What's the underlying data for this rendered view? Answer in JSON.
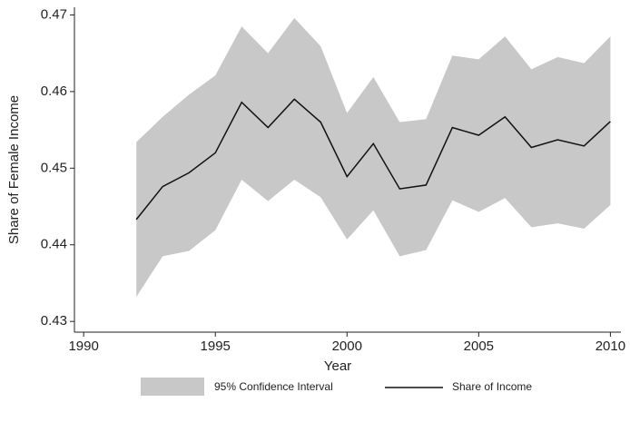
{
  "chart_data": {
    "type": "line-band",
    "x_label": "Year",
    "y_label": "Share of Female Income",
    "x": [
      1992,
      1993,
      1994,
      1995,
      1996,
      1997,
      1998,
      1999,
      2000,
      2001,
      2002,
      2003,
      2004,
      2005,
      2006,
      2007,
      2008,
      2009,
      2010
    ],
    "xlim": [
      1989.65,
      2010.4
    ],
    "xticks": [
      1990,
      1995,
      2000,
      2005,
      2010
    ],
    "ylim": [
      0.4286,
      0.471
    ],
    "yticks": [
      0.43,
      0.44,
      0.45,
      0.46,
      0.47
    ],
    "band": {
      "name": "95% Confidence Interval",
      "color": "#c8c8c8",
      "upper": [
        0.4534,
        0.4567,
        0.4596,
        0.4621,
        0.4685,
        0.465,
        0.4696,
        0.4659,
        0.4572,
        0.4619,
        0.456,
        0.4564,
        0.4647,
        0.4642,
        0.4672,
        0.4629,
        0.4645,
        0.4637,
        0.4672
      ],
      "lower": [
        0.4332,
        0.4385,
        0.4392,
        0.4419,
        0.4485,
        0.4457,
        0.4485,
        0.4462,
        0.4407,
        0.4445,
        0.4385,
        0.4393,
        0.4458,
        0.4443,
        0.4461,
        0.4423,
        0.4428,
        0.4421,
        0.4452
      ]
    },
    "series": [
      {
        "name": "Share of Income",
        "color": "#111111",
        "values": [
          0.4433,
          0.4476,
          0.4494,
          0.452,
          0.4586,
          0.4553,
          0.459,
          0.456,
          0.4489,
          0.4532,
          0.4473,
          0.4478,
          0.4553,
          0.4543,
          0.4567,
          0.4527,
          0.4537,
          0.4529,
          0.4561
        ]
      }
    ]
  }
}
